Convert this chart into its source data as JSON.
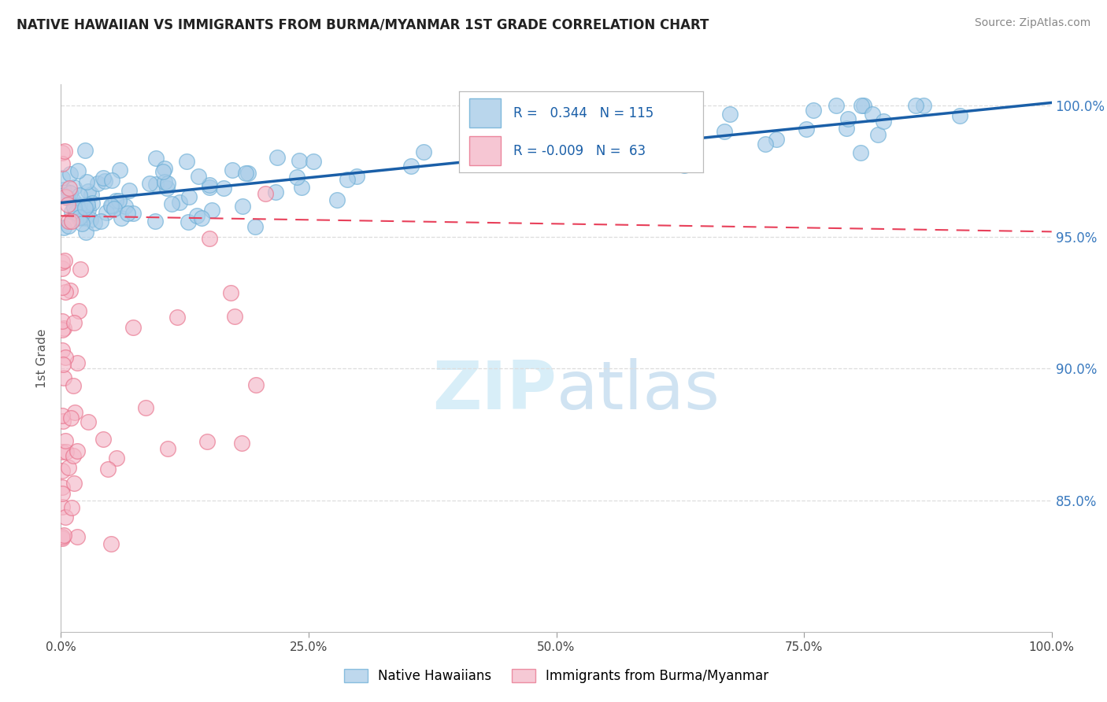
{
  "title": "NATIVE HAWAIIAN VS IMMIGRANTS FROM BURMA/MYANMAR 1ST GRADE CORRELATION CHART",
  "source": "Source: ZipAtlas.com",
  "legend_blue_label": "Native Hawaiians",
  "legend_pink_label": "Immigrants from Burma/Myanmar",
  "r_blue": 0.344,
  "n_blue": 115,
  "r_pink": -0.009,
  "n_pink": 63,
  "blue_color": "#a8cce8",
  "blue_edge_color": "#6baed6",
  "pink_color": "#f4b8c8",
  "pink_edge_color": "#e8708a",
  "trend_blue_color": "#1a5fa8",
  "trend_pink_color": "#e8405a",
  "background_color": "#ffffff",
  "grid_color": "#dddddd",
  "watermark_color": "#d8eef8",
  "ylabel": "1st Grade",
  "xmin": 0.0,
  "xmax": 1.0,
  "ymin": 0.8,
  "ymax": 1.008,
  "yticks": [
    0.85,
    0.9,
    0.95,
    1.0
  ],
  "xticks": [
    0.0,
    0.25,
    0.5,
    0.75,
    1.0
  ],
  "blue_trend_y0": 0.963,
  "blue_trend_y1": 1.001,
  "pink_trend_y0": 0.958,
  "pink_trend_y1": 0.952
}
